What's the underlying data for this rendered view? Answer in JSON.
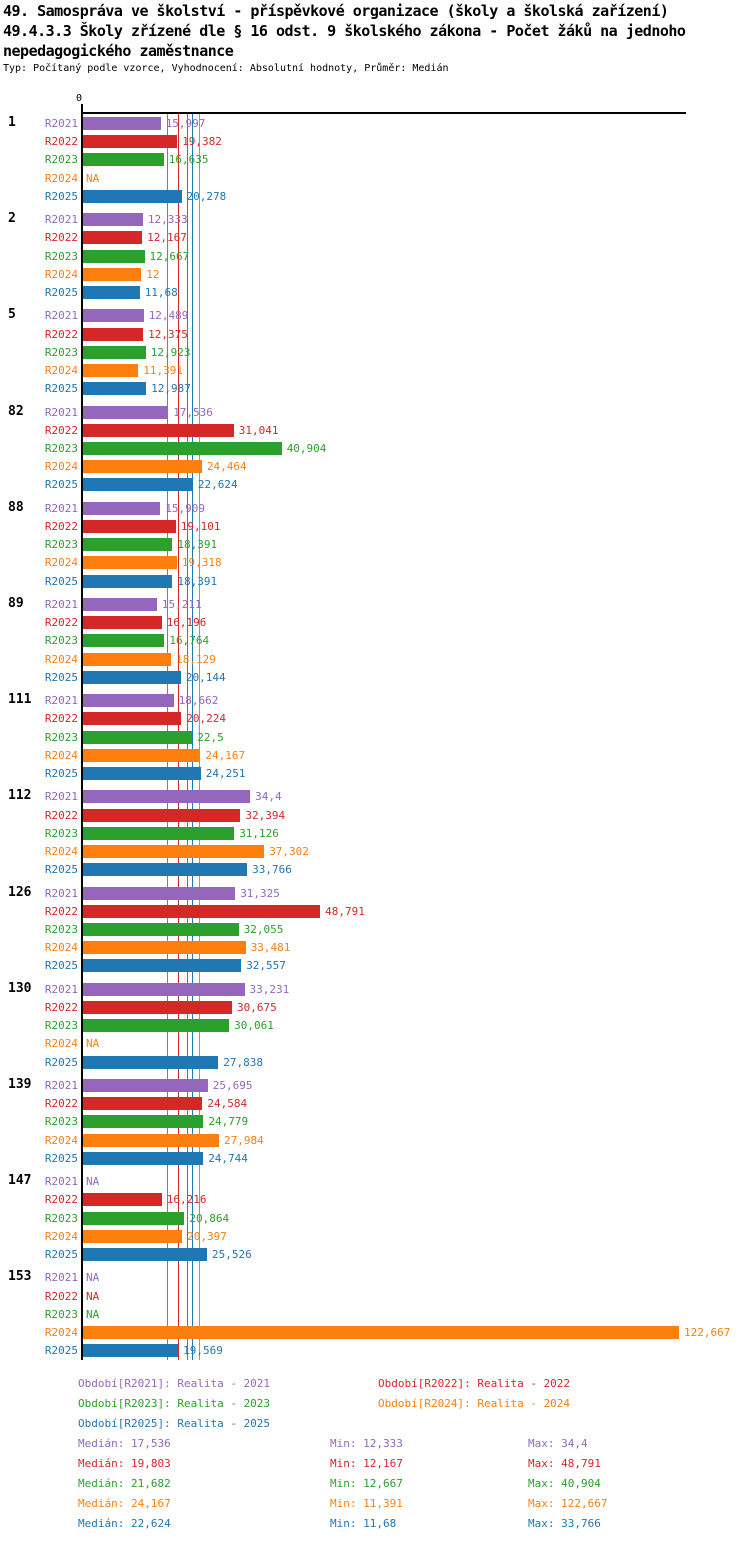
{
  "header": {
    "title_line1": "49. Samospráva ve školství - příspěvkové organizace (školy a školská zařízení)",
    "title_line2": "49.4.3.3 Školy zřízené dle § 16 odst. 9 školského zákona - Počet žáků na jednoho",
    "title_line3": "nepedagogického zaměstnance",
    "subtitle": "Typ: Počítaný podle vzorce, Vyhodnocení: Absolutní hodnoty, Průměr: Medián"
  },
  "axis": {
    "origin_label": "0"
  },
  "chart_data": {
    "type": "bar",
    "orientation": "horizontal",
    "xlim": [
      0,
      124.3
    ],
    "grid": false,
    "legend_position": "bottom",
    "na_label": "NA",
    "categories": [
      "1",
      "2",
      "5",
      "82",
      "88",
      "89",
      "111",
      "112",
      "126",
      "130",
      "139",
      "147",
      "153"
    ],
    "series": [
      {
        "id": "R2021",
        "color": "#9467bd",
        "legend_label": "Období[R2021]: Realita - 2021",
        "median": 17.536,
        "stats": {
          "median_label": "Medián: 17,536",
          "min_label": "Min: 12,333",
          "max_label": "Max: 34,4"
        },
        "values": [
          15.997,
          12.333,
          12.489,
          17.536,
          15.909,
          15.211,
          18.662,
          34.4,
          31.325,
          33.231,
          25.695,
          null,
          null
        ],
        "value_labels": [
          "15,997",
          "12,333",
          "12,489",
          "17,536",
          "15,909",
          "15,211",
          "18,662",
          "34,4",
          "31,325",
          "33,231",
          "25,695",
          "NA",
          "NA"
        ]
      },
      {
        "id": "R2022",
        "color": "#d62728",
        "legend_label": "Období[R2022]: Realita - 2022",
        "median": 19.803,
        "stats": {
          "median_label": "Medián: 19,803",
          "min_label": "Min: 12,167",
          "max_label": "Max: 48,791"
        },
        "values": [
          19.382,
          12.167,
          12.375,
          31.041,
          19.101,
          16.196,
          20.224,
          32.394,
          48.791,
          30.675,
          24.584,
          16.216,
          null
        ],
        "value_labels": [
          "19,382",
          "12,167",
          "12,375",
          "31,041",
          "19,101",
          "16,196",
          "20,224",
          "32,394",
          "48,791",
          "30,675",
          "24,584",
          "16,216",
          "NA"
        ]
      },
      {
        "id": "R2023",
        "color": "#2ca02c",
        "legend_label": "Období[R2023]: Realita - 2023",
        "median": 21.682,
        "stats": {
          "median_label": "Medián: 21,682",
          "min_label": "Min: 12,667",
          "max_label": "Max: 40,904"
        },
        "values": [
          16.635,
          12.667,
          12.923,
          40.904,
          18.391,
          16.764,
          22.5,
          31.126,
          32.055,
          30.061,
          24.779,
          20.864,
          null
        ],
        "value_labels": [
          "16,635",
          "12,667",
          "12,923",
          "40,904",
          "18,391",
          "16,764",
          "22,5",
          "31,126",
          "32,055",
          "30,061",
          "24,779",
          "20,864",
          "NA"
        ]
      },
      {
        "id": "R2024",
        "color": "#ff7f0e",
        "legend_label": "Období[R2024]: Realita - 2024",
        "median": 24.167,
        "stats": {
          "median_label": "Medián: 24,167",
          "min_label": "Min: 11,391",
          "max_label": "Max: 122,667"
        },
        "values": [
          null,
          12,
          11.391,
          24.464,
          19.318,
          18.129,
          24.167,
          37.302,
          33.481,
          null,
          27.984,
          20.397,
          122.667
        ],
        "value_labels": [
          "NA",
          "12",
          "11,391",
          "24,464",
          "19,318",
          "18,129",
          "24,167",
          "37,302",
          "33,481",
          "NA",
          "27,984",
          "20,397",
          "122,667"
        ]
      },
      {
        "id": "R2025",
        "color": "#1f77b4",
        "legend_label": "Období[R2025]: Realita - 2025",
        "median": 22.624,
        "stats": {
          "median_label": "Medián: 22,624",
          "min_label": "Min: 11,68",
          "max_label": "Max: 33,766"
        },
        "values": [
          20.278,
          11.68,
          12.987,
          22.624,
          18.391,
          20.144,
          24.251,
          33.766,
          32.557,
          27.838,
          24.744,
          25.526,
          19.569
        ],
        "value_labels": [
          "20,278",
          "11,68",
          "12,987",
          "22,624",
          "18,391",
          "20,144",
          "24,251",
          "33,766",
          "32,557",
          "27,838",
          "24,744",
          "25,526",
          "19,569"
        ]
      }
    ]
  }
}
